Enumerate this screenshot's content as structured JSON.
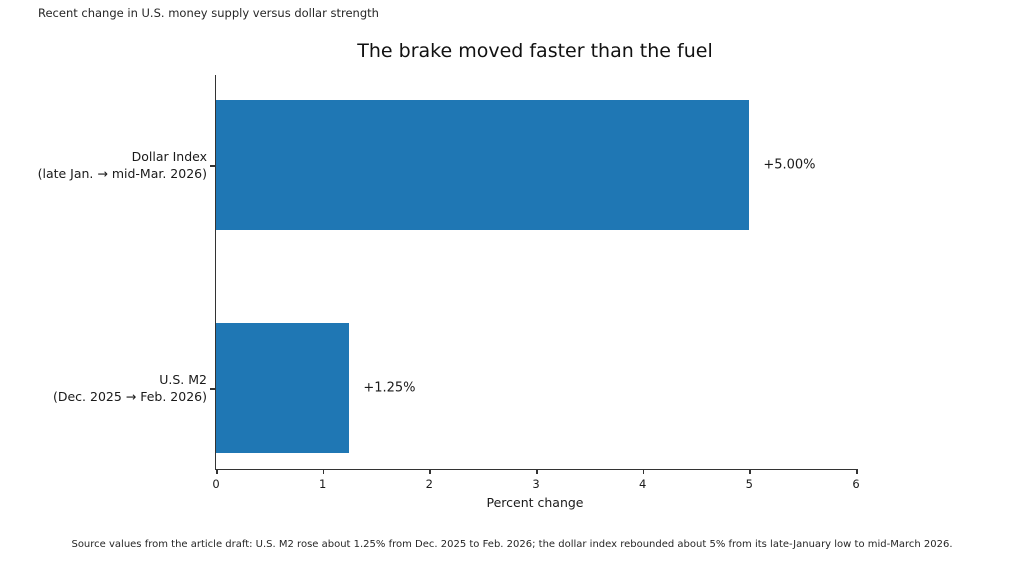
{
  "figure": {
    "suptitle": "Recent change in U.S. money supply versus dollar strength",
    "caption": "Source values from the article draft: U.S. M2 rose about 1.25% from Dec. 2025 to Feb. 2026; the dollar index rebounded about 5% from its late-January low to mid-March 2026."
  },
  "chart_data": {
    "type": "bar",
    "orientation": "horizontal",
    "title": "The brake moved faster than the fuel",
    "categories": [
      "Dollar Index\n(late Jan. → mid-Mar. 2026)",
      "U.S. M2\n(Dec. 2025 → Feb. 2026)"
    ],
    "values": [
      5.0,
      1.25
    ],
    "value_labels": [
      "+5.00%",
      "+1.25%"
    ],
    "xlabel": "Percent change",
    "xlim": [
      0,
      6
    ],
    "xticks": [
      0,
      1,
      2,
      3,
      4,
      5,
      6
    ],
    "bar_color": "#1f77b4",
    "grid": false,
    "legend_position": "none"
  }
}
